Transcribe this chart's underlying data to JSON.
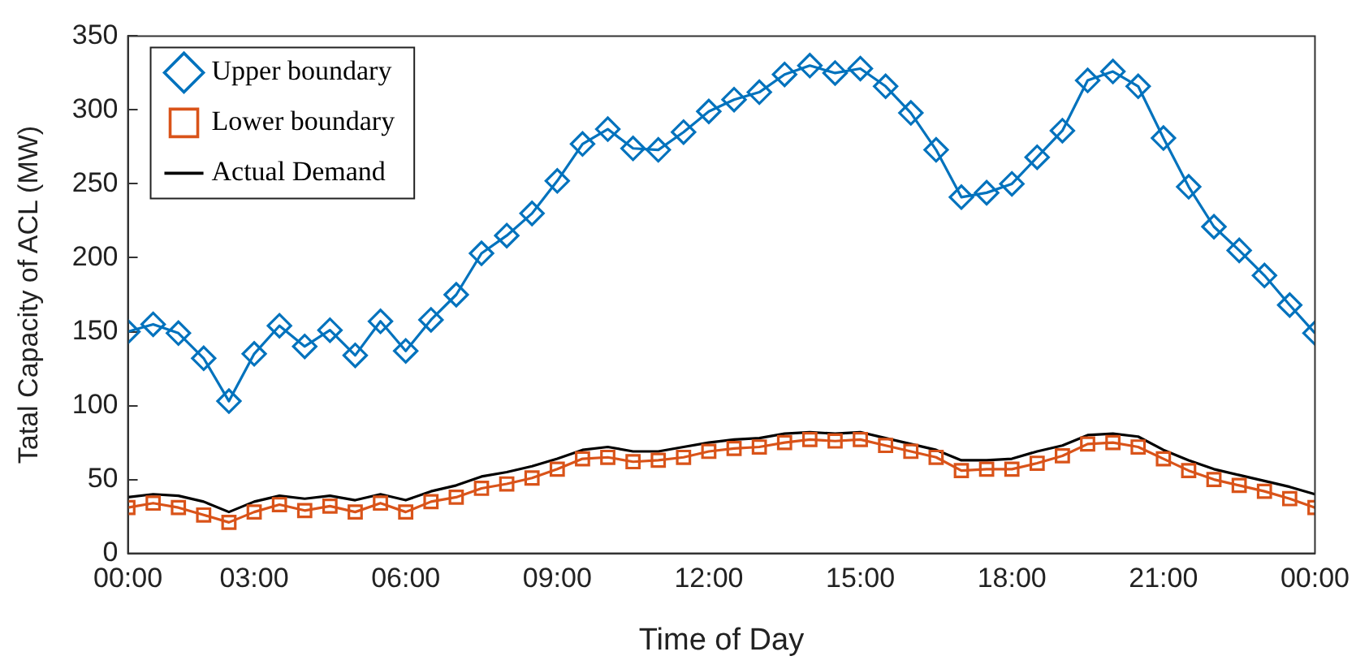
{
  "chart_data": {
    "type": "line",
    "xlabel": "Time of Day",
    "ylabel": "Tatal Capacity of ACL (MW)",
    "x": [
      0.5,
      1,
      1.5,
      2,
      2.5,
      3,
      3.5,
      4,
      4.5,
      5,
      5.5,
      6,
      6.5,
      7,
      7.5,
      8,
      8.5,
      9,
      9.5,
      10,
      10.5,
      11,
      11.5,
      12,
      12.5,
      13,
      13.5,
      14,
      14.5,
      15,
      15.5,
      16,
      16.5,
      17,
      17.5,
      18,
      18.5,
      19,
      19.5,
      20,
      20.5,
      21,
      21.5,
      22,
      22.5,
      23,
      23.5,
      24
    ],
    "series": [
      {
        "name": "Upper boundary",
        "color": "#0072bd",
        "marker": "diamond",
        "values": [
          150,
          155,
          149,
          132,
          103,
          135,
          154,
          140,
          151,
          134,
          157,
          137,
          158,
          175,
          203,
          215,
          230,
          252,
          277,
          287,
          274,
          273,
          285,
          299,
          307,
          312,
          324,
          330,
          325,
          328,
          316,
          298,
          273,
          241,
          244,
          250,
          268,
          286,
          320,
          326,
          316,
          281,
          248,
          221,
          205,
          188,
          168,
          149
        ]
      },
      {
        "name": "Lower boundary",
        "color": "#d95319",
        "marker": "square",
        "values": [
          31,
          34,
          31,
          26,
          21,
          28,
          33,
          29,
          32,
          28,
          34,
          28,
          35,
          38,
          44,
          47,
          51,
          57,
          64,
          65,
          62,
          63,
          65,
          69,
          71,
          72,
          75,
          77,
          76,
          77,
          73,
          69,
          65,
          56,
          57,
          57,
          61,
          66,
          74,
          75,
          72,
          64,
          56,
          50,
          46,
          42,
          37,
          31
        ]
      },
      {
        "name": "Actual Demand",
        "color": "#000000",
        "marker": "none",
        "values": [
          38,
          40,
          39,
          35,
          28,
          35,
          39,
          37,
          39,
          36,
          40,
          36,
          42,
          46,
          52,
          55,
          59,
          64,
          70,
          72,
          69,
          69,
          72,
          75,
          77,
          78,
          81,
          82,
          81,
          82,
          78,
          74,
          70,
          63,
          63,
          64,
          69,
          73,
          80,
          81,
          79,
          70,
          63,
          57,
          53,
          49,
          45,
          40
        ]
      }
    ],
    "xlim": [
      0.5,
      24
    ],
    "xticks": [
      {
        "value": 0.5,
        "label": "00:00"
      },
      {
        "value": 3,
        "label": "03:00"
      },
      {
        "value": 6,
        "label": "06:00"
      },
      {
        "value": 9,
        "label": "09:00"
      },
      {
        "value": 12,
        "label": "12:00"
      },
      {
        "value": 15,
        "label": "15:00"
      },
      {
        "value": 18,
        "label": "18:00"
      },
      {
        "value": 21,
        "label": "21:00"
      },
      {
        "value": 24,
        "label": "00:00"
      }
    ],
    "ylim": [
      0,
      350
    ],
    "yticks": [
      0,
      50,
      100,
      150,
      200,
      250,
      300,
      350
    ],
    "grid": false,
    "legend": "top left",
    "line_style": "solid"
  }
}
